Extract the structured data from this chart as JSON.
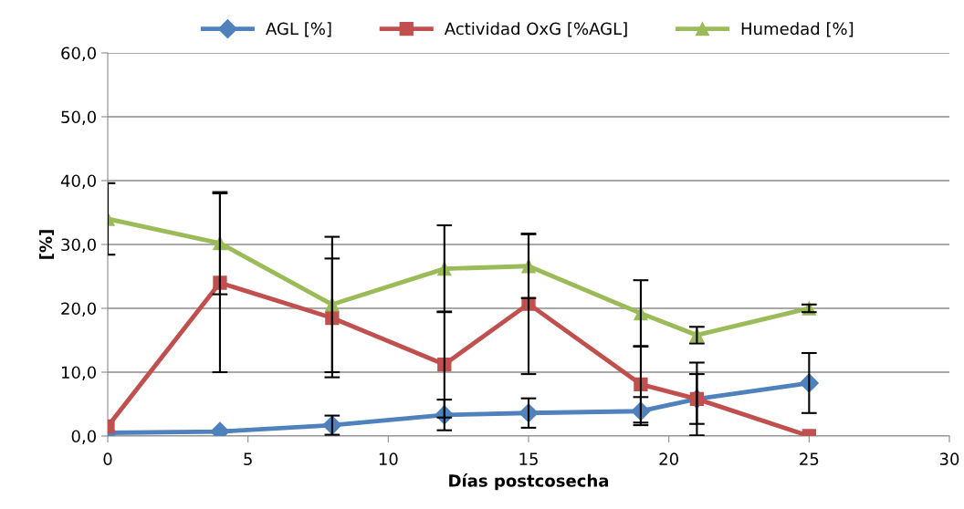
{
  "chart_data": {
    "type": "line",
    "xlabel": "Días postcosecha",
    "ylabel": "[%]",
    "x": [
      0,
      4,
      8,
      12,
      15,
      19,
      21,
      25
    ],
    "xlim": [
      0,
      30
    ],
    "xticks": [
      0,
      5,
      10,
      15,
      20,
      25,
      30
    ],
    "ylim": [
      0,
      60
    ],
    "yticks": [
      {
        "value": 0,
        "label": "0,0"
      },
      {
        "value": 10,
        "label": "10,0"
      },
      {
        "value": 20,
        "label": "20,0"
      },
      {
        "value": 30,
        "label": "30,0"
      },
      {
        "value": 40,
        "label": "40,0"
      },
      {
        "value": 50,
        "label": "50,0"
      },
      {
        "value": 60,
        "label": "60,0"
      }
    ],
    "grid": "y",
    "legend": "top",
    "series": [
      {
        "name": "AGL [%]",
        "color": "#4f81bd",
        "marker": "diamond",
        "values": [
          0.5,
          0.7,
          1.7,
          3.3,
          3.6,
          3.9,
          5.8,
          8.3
        ],
        "errors": [
          null,
          null,
          1.5,
          2.4,
          2.3,
          2.2,
          3.9,
          4.7
        ]
      },
      {
        "name": "Actividad OxG [%AGL]",
        "color": "#c0504d",
        "marker": "square",
        "values": [
          1.5,
          24.0,
          18.5,
          11.2,
          20.7,
          8.1,
          5.8,
          0.0
        ],
        "errors": [
          null,
          14,
          9.3,
          8.3,
          11,
          6,
          5.7,
          null
        ]
      },
      {
        "name": "Humedad [%]",
        "color": "#9bbb59",
        "marker": "triangle",
        "values": [
          34.0,
          30.2,
          20.6,
          26.2,
          26.6,
          19.2,
          15.8,
          20.0
        ],
        "errors": [
          5.6,
          8,
          10.6,
          6.8,
          5,
          5.2,
          1.3,
          0.6
        ]
      }
    ]
  }
}
